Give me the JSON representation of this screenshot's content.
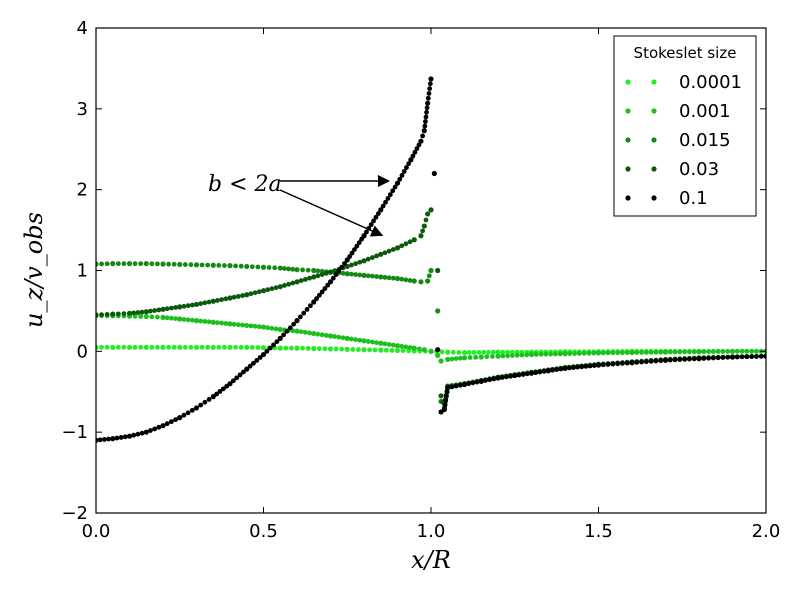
{
  "chart_data": {
    "type": "scatter",
    "title": "",
    "xlabel": "x/R",
    "ylabel": "u_z/v_obs",
    "xlim": [
      0.0,
      2.0
    ],
    "ylim": [
      -2,
      4
    ],
    "xticks": [
      0.0,
      0.5,
      1.0,
      1.5,
      2.0
    ],
    "xtick_labels": [
      "0.0",
      "0.5",
      "1.0",
      "1.5",
      "2.0"
    ],
    "yticks": [
      -2,
      -1,
      0,
      1,
      2,
      3,
      4
    ],
    "ytick_labels": [
      "−2",
      "−1",
      "0",
      "1",
      "2",
      "3",
      "4"
    ],
    "grid": false,
    "legend": {
      "title": "Stokeslet size",
      "location": "top-right",
      "entries": [
        "0.0001",
        "0.001",
        "0.015",
        "0.03",
        "0.1"
      ]
    },
    "annotation": {
      "text": "b < 2a",
      "arrow_targets": [
        [
          0.88,
          2.12
        ],
        [
          0.86,
          1.41
        ]
      ],
      "text_anchor": [
        0.54,
        2.05
      ]
    },
    "series": [
      {
        "name": "0.0001",
        "color": "#22ee22",
        "points": [
          [
            0.0,
            0.05
          ],
          [
            0.05,
            0.05
          ],
          [
            0.1,
            0.05
          ],
          [
            0.15,
            0.05
          ],
          [
            0.2,
            0.05
          ],
          [
            0.25,
            0.05
          ],
          [
            0.3,
            0.05
          ],
          [
            0.35,
            0.05
          ],
          [
            0.4,
            0.05
          ],
          [
            0.45,
            0.05
          ],
          [
            0.5,
            0.045
          ],
          [
            0.55,
            0.04
          ],
          [
            0.6,
            0.04
          ],
          [
            0.65,
            0.035
          ],
          [
            0.7,
            0.03
          ],
          [
            0.75,
            0.025
          ],
          [
            0.8,
            0.02
          ],
          [
            0.85,
            0.015
          ],
          [
            0.9,
            0.01
          ],
          [
            0.95,
            0.005
          ],
          [
            1.0,
            0.0
          ],
          [
            1.05,
            -0.01
          ],
          [
            1.1,
            -0.015
          ],
          [
            1.2,
            -0.01
          ],
          [
            1.3,
            -0.01
          ],
          [
            1.4,
            -0.005
          ],
          [
            1.5,
            -0.005
          ],
          [
            1.6,
            0.0
          ],
          [
            1.7,
            0.0
          ],
          [
            1.8,
            0.0
          ],
          [
            1.9,
            0.0
          ],
          [
            2.0,
            0.0
          ]
        ]
      },
      {
        "name": "0.001",
        "color": "#1cc01c",
        "points": [
          [
            0.0,
            0.44
          ],
          [
            0.05,
            0.44
          ],
          [
            0.1,
            0.435
          ],
          [
            0.15,
            0.43
          ],
          [
            0.2,
            0.42
          ],
          [
            0.25,
            0.4
          ],
          [
            0.3,
            0.38
          ],
          [
            0.35,
            0.36
          ],
          [
            0.4,
            0.34
          ],
          [
            0.45,
            0.32
          ],
          [
            0.5,
            0.3
          ],
          [
            0.55,
            0.27
          ],
          [
            0.6,
            0.25
          ],
          [
            0.65,
            0.22
          ],
          [
            0.7,
            0.19
          ],
          [
            0.75,
            0.16
          ],
          [
            0.8,
            0.13
          ],
          [
            0.85,
            0.1
          ],
          [
            0.9,
            0.07
          ],
          [
            0.95,
            0.04
          ],
          [
            0.98,
            0.02
          ],
          [
            1.0,
            0.0
          ],
          [
            1.02,
            -0.05
          ],
          [
            1.03,
            -0.12
          ],
          [
            1.05,
            -0.1
          ],
          [
            1.1,
            -0.08
          ],
          [
            1.15,
            -0.07
          ],
          [
            1.2,
            -0.06
          ],
          [
            1.3,
            -0.04
          ],
          [
            1.4,
            -0.03
          ],
          [
            1.5,
            -0.02
          ],
          [
            1.6,
            -0.015
          ],
          [
            1.7,
            -0.01
          ],
          [
            1.8,
            -0.005
          ],
          [
            1.9,
            0.0
          ],
          [
            2.0,
            0.0
          ]
        ]
      },
      {
        "name": "0.015",
        "color": "#148a14",
        "points": [
          [
            0.0,
            1.08
          ],
          [
            0.05,
            1.085
          ],
          [
            0.1,
            1.085
          ],
          [
            0.15,
            1.085
          ],
          [
            0.2,
            1.08
          ],
          [
            0.25,
            1.075
          ],
          [
            0.3,
            1.07
          ],
          [
            0.35,
            1.065
          ],
          [
            0.4,
            1.06
          ],
          [
            0.45,
            1.05
          ],
          [
            0.5,
            1.04
          ],
          [
            0.55,
            1.03
          ],
          [
            0.6,
            1.01
          ],
          [
            0.65,
            1.0
          ],
          [
            0.7,
            0.98
          ],
          [
            0.75,
            0.96
          ],
          [
            0.8,
            0.94
          ],
          [
            0.85,
            0.92
          ],
          [
            0.9,
            0.9
          ],
          [
            0.95,
            0.87
          ],
          [
            0.97,
            0.86
          ],
          [
            0.99,
            0.87
          ],
          [
            1.0,
            1.0
          ],
          [
            1.02,
            0.5
          ],
          [
            1.03,
            -0.62
          ],
          [
            1.04,
            -0.65
          ],
          [
            1.05,
            -0.44
          ],
          [
            1.1,
            -0.4
          ],
          [
            1.15,
            -0.37
          ],
          [
            1.2,
            -0.33
          ],
          [
            1.25,
            -0.3
          ],
          [
            1.3,
            -0.27
          ],
          [
            1.35,
            -0.24
          ],
          [
            1.4,
            -0.21
          ],
          [
            1.5,
            -0.17
          ],
          [
            1.6,
            -0.14
          ],
          [
            1.7,
            -0.11
          ],
          [
            1.8,
            -0.09
          ],
          [
            1.9,
            -0.07
          ],
          [
            2.0,
            -0.06
          ]
        ]
      },
      {
        "name": "0.03",
        "color": "#0b5a0b",
        "points": [
          [
            0.0,
            0.45
          ],
          [
            0.05,
            0.46
          ],
          [
            0.1,
            0.47
          ],
          [
            0.15,
            0.49
          ],
          [
            0.2,
            0.52
          ],
          [
            0.25,
            0.55
          ],
          [
            0.3,
            0.58
          ],
          [
            0.35,
            0.62
          ],
          [
            0.4,
            0.66
          ],
          [
            0.45,
            0.7
          ],
          [
            0.5,
            0.75
          ],
          [
            0.55,
            0.8
          ],
          [
            0.6,
            0.86
          ],
          [
            0.65,
            0.92
          ],
          [
            0.7,
            0.98
          ],
          [
            0.75,
            1.05
          ],
          [
            0.8,
            1.12
          ],
          [
            0.85,
            1.2
          ],
          [
            0.9,
            1.28
          ],
          [
            0.95,
            1.38
          ],
          [
            0.97,
            1.43
          ],
          [
            0.98,
            1.55
          ],
          [
            0.99,
            1.7
          ],
          [
            1.0,
            1.75
          ],
          [
            1.02,
            1.0
          ],
          [
            1.03,
            -0.55
          ],
          [
            1.04,
            -0.7
          ],
          [
            1.05,
            -0.43
          ],
          [
            1.1,
            -0.4
          ],
          [
            1.15,
            -0.36
          ],
          [
            1.2,
            -0.32
          ],
          [
            1.25,
            -0.29
          ],
          [
            1.3,
            -0.26
          ],
          [
            1.35,
            -0.23
          ],
          [
            1.4,
            -0.2
          ],
          [
            1.5,
            -0.16
          ],
          [
            1.6,
            -0.13
          ],
          [
            1.7,
            -0.1
          ],
          [
            1.8,
            -0.08
          ],
          [
            1.9,
            -0.07
          ],
          [
            2.0,
            -0.06
          ]
        ]
      },
      {
        "name": "0.1",
        "color": "#000000",
        "points": [
          [
            0.0,
            -1.1
          ],
          [
            0.05,
            -1.08
          ],
          [
            0.1,
            -1.05
          ],
          [
            0.15,
            -1.0
          ],
          [
            0.2,
            -0.92
          ],
          [
            0.25,
            -0.82
          ],
          [
            0.3,
            -0.7
          ],
          [
            0.35,
            -0.56
          ],
          [
            0.4,
            -0.4
          ],
          [
            0.45,
            -0.22
          ],
          [
            0.5,
            -0.04
          ],
          [
            0.55,
            0.16
          ],
          [
            0.6,
            0.38
          ],
          [
            0.65,
            0.61
          ],
          [
            0.7,
            0.86
          ],
          [
            0.75,
            1.13
          ],
          [
            0.8,
            1.43
          ],
          [
            0.85,
            1.75
          ],
          [
            0.9,
            2.08
          ],
          [
            0.94,
            2.37
          ],
          [
            0.97,
            2.6
          ],
          [
            0.98,
            2.73
          ],
          [
            0.99,
            3.07
          ],
          [
            1.0,
            3.37
          ],
          [
            1.01,
            2.2
          ],
          [
            1.02,
            0.02
          ],
          [
            1.03,
            -0.75
          ],
          [
            1.04,
            -0.72
          ],
          [
            1.05,
            -0.45
          ],
          [
            1.1,
            -0.41
          ],
          [
            1.15,
            -0.37
          ],
          [
            1.2,
            -0.33
          ],
          [
            1.25,
            -0.3
          ],
          [
            1.3,
            -0.27
          ],
          [
            1.35,
            -0.24
          ],
          [
            1.4,
            -0.21
          ],
          [
            1.5,
            -0.17
          ],
          [
            1.6,
            -0.14
          ],
          [
            1.7,
            -0.11
          ],
          [
            1.8,
            -0.09
          ],
          [
            1.9,
            -0.07
          ],
          [
            2.0,
            -0.06
          ]
        ]
      }
    ]
  }
}
